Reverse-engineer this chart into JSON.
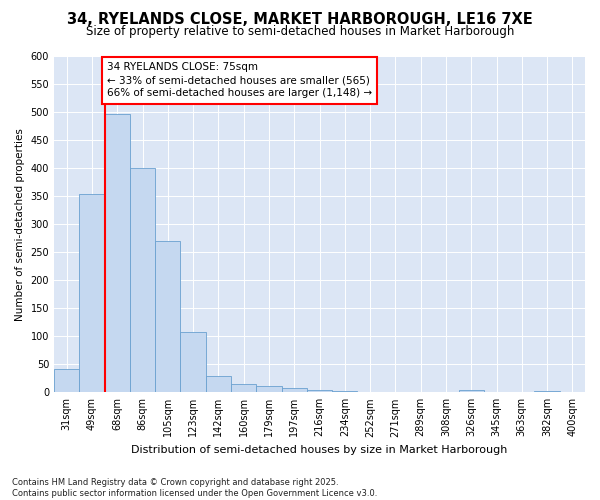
{
  "title": "34, RYELANDS CLOSE, MARKET HARBOROUGH, LE16 7XE",
  "subtitle": "Size of property relative to semi-detached houses in Market Harborough",
  "xlabel": "Distribution of semi-detached houses by size in Market Harborough",
  "ylabel": "Number of semi-detached properties",
  "categories": [
    "31sqm",
    "49sqm",
    "68sqm",
    "86sqm",
    "105sqm",
    "123sqm",
    "142sqm",
    "160sqm",
    "179sqm",
    "197sqm",
    "216sqm",
    "234sqm",
    "252sqm",
    "271sqm",
    "289sqm",
    "308sqm",
    "326sqm",
    "345sqm",
    "363sqm",
    "382sqm",
    "400sqm"
  ],
  "values": [
    42,
    355,
    497,
    400,
    270,
    107,
    30,
    15,
    12,
    8,
    5,
    3,
    1,
    1,
    0,
    0,
    4,
    0,
    0,
    3,
    0
  ],
  "bar_color": "#c5d8f0",
  "bar_edge_color": "#6aa0d0",
  "vline_x_index": 2,
  "vline_color": "red",
  "annotation_line1": "34 RYELANDS CLOSE: 75sqm",
  "annotation_line2": "← 33% of semi-detached houses are smaller (565)",
  "annotation_line3": "66% of semi-detached houses are larger (1,148) →",
  "annotation_box_color": "white",
  "annotation_box_edge_color": "red",
  "ylim": [
    0,
    600
  ],
  "yticks": [
    0,
    50,
    100,
    150,
    200,
    250,
    300,
    350,
    400,
    450,
    500,
    550,
    600
  ],
  "fig_background": "#ffffff",
  "plot_background": "#dce6f5",
  "grid_color": "#ffffff",
  "footer_text": "Contains HM Land Registry data © Crown copyright and database right 2025.\nContains public sector information licensed under the Open Government Licence v3.0.",
  "title_fontsize": 10.5,
  "subtitle_fontsize": 8.5,
  "xlabel_fontsize": 8,
  "ylabel_fontsize": 7.5,
  "tick_fontsize": 7,
  "annotation_fontsize": 7.5,
  "footer_fontsize": 6
}
